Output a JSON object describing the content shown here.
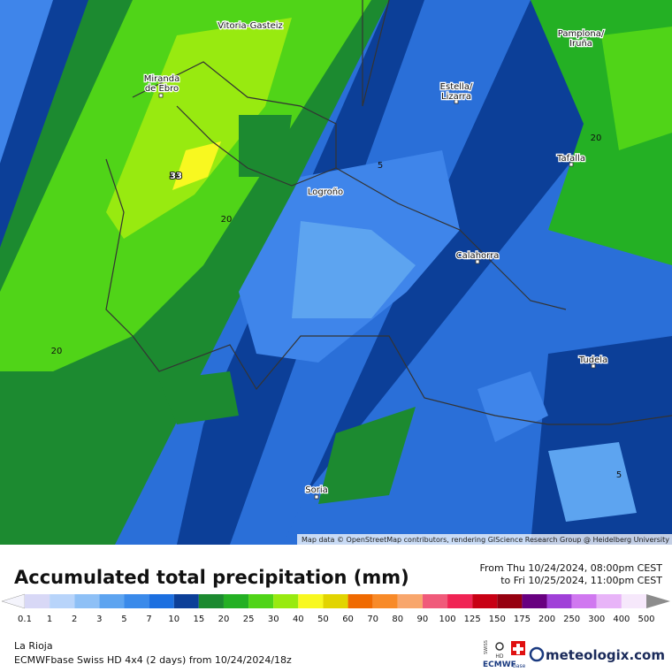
{
  "map": {
    "places": [
      {
        "label": [
          "Vitoria-Gasteiz"
        ]
      },
      {
        "label": [
          "Pamplona/",
          "Iruña"
        ]
      },
      {
        "label": [
          "Miranda",
          "de Ebro"
        ]
      },
      {
        "label": [
          "Estella/",
          "Lizarra"
        ]
      },
      {
        "label": [
          "Tafalla"
        ]
      },
      {
        "label": [
          "Logroño"
        ]
      },
      {
        "label": [
          "Calahorra"
        ]
      },
      {
        "label": [
          "Tudela"
        ]
      },
      {
        "label": [
          "Soria"
        ]
      }
    ],
    "contour_labels": [
      "33",
      "20",
      "20",
      "20",
      "5",
      "5"
    ],
    "attribution": "Map data © OpenStreetMap contributors, rendering GIScience Research Group @ Heidelberg University"
  },
  "legend": {
    "title": "Accumulated total precipitation (mm)",
    "period": [
      "From Thu 10/24/2024, 08:00pm CEST",
      "to Fri 10/25/2024, 11:00pm CEST"
    ],
    "levels": [
      0.1,
      1,
      2,
      3,
      5,
      7,
      10,
      15,
      20,
      25,
      30,
      40,
      50,
      60,
      70,
      80,
      90,
      100,
      125,
      150,
      175,
      200,
      250,
      300,
      400,
      500
    ],
    "colors": [
      "#f4f4fc",
      "#d8d8f6",
      "#b8d4fa",
      "#8ec0f6",
      "#5da4f0",
      "#3a8aea",
      "#1c6fe0",
      "#0c3f98",
      "#1c8a30",
      "#24b024",
      "#50d418",
      "#98ea10",
      "#f8f820",
      "#e2d400",
      "#f06a00",
      "#f88a28",
      "#f8a66c",
      "#f05a7a",
      "#f02454",
      "#c80014",
      "#960010",
      "#680080",
      "#a040d8",
      "#d078f0",
      "#e8b4f8",
      "#f6e8fb",
      "#d4d4d4",
      "#8c8c8c"
    ]
  },
  "footer": {
    "region": "La Rioja",
    "model": "ECMWFbase Swiss HD 4x4 (2 days) from  10/24/2024/18z",
    "badge": [
      "SWISS",
      "HD",
      "ECMWF",
      "base"
    ],
    "brand": "meteologix.com"
  }
}
